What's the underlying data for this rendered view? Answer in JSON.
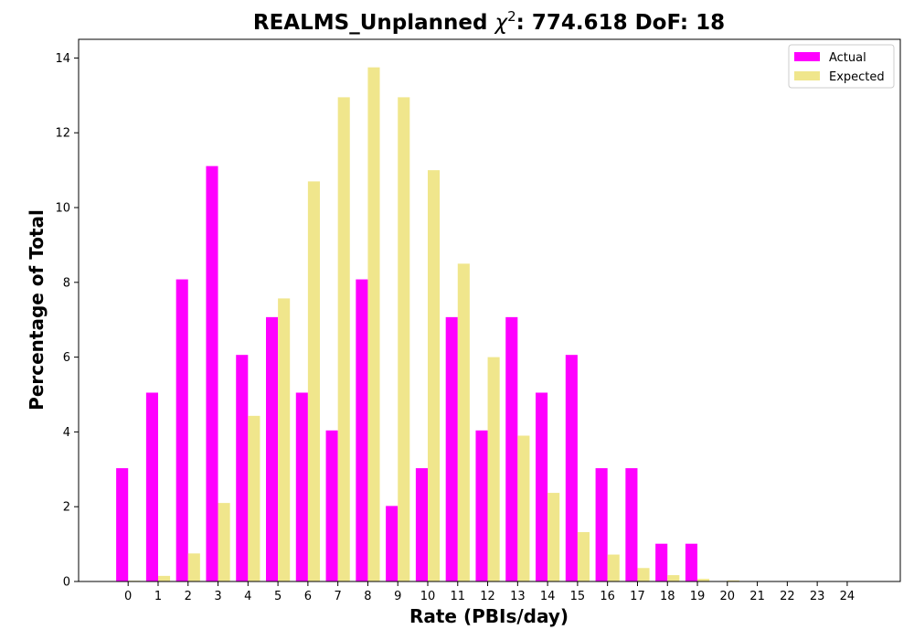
{
  "chart_data": {
    "type": "bar",
    "title_main": "REALMS_Unplanned ",
    "title_chi_symbol": "χ",
    "title_chi_exp": "2",
    "title_suffix": ": 774.618 DoF: 18",
    "xlabel": "Rate (PBIs/day)",
    "ylabel": "Percentage of Total",
    "categories": [
      "0",
      "1",
      "2",
      "3",
      "4",
      "5",
      "6",
      "7",
      "8",
      "9",
      "10",
      "11",
      "12",
      "13",
      "14",
      "15",
      "16",
      "17",
      "18",
      "19",
      "20",
      "21",
      "22",
      "23",
      "24"
    ],
    "ylim": [
      0,
      14.5
    ],
    "yticks": [
      0,
      2,
      4,
      6,
      8,
      10,
      12,
      14
    ],
    "series": [
      {
        "name": "Actual",
        "color": "#ff00ff",
        "values": [
          3.03,
          5.05,
          8.08,
          11.11,
          6.06,
          7.07,
          5.05,
          4.04,
          8.08,
          2.02,
          3.03,
          7.07,
          4.04,
          7.07,
          5.05,
          6.06,
          3.03,
          3.03,
          1.01,
          1.01,
          0,
          0,
          0,
          0,
          0
        ]
      },
      {
        "name": "Expected",
        "color": "#f0e68c",
        "values": [
          0.02,
          0.15,
          0.75,
          2.1,
          4.43,
          7.57,
          10.7,
          12.95,
          13.75,
          12.95,
          11.0,
          8.5,
          6.0,
          3.9,
          2.37,
          1.32,
          0.72,
          0.36,
          0.17,
          0.07,
          0.03,
          0.01,
          0.0,
          0.0,
          0.0
        ]
      }
    ],
    "legend_position": "top-right",
    "grid": false
  }
}
